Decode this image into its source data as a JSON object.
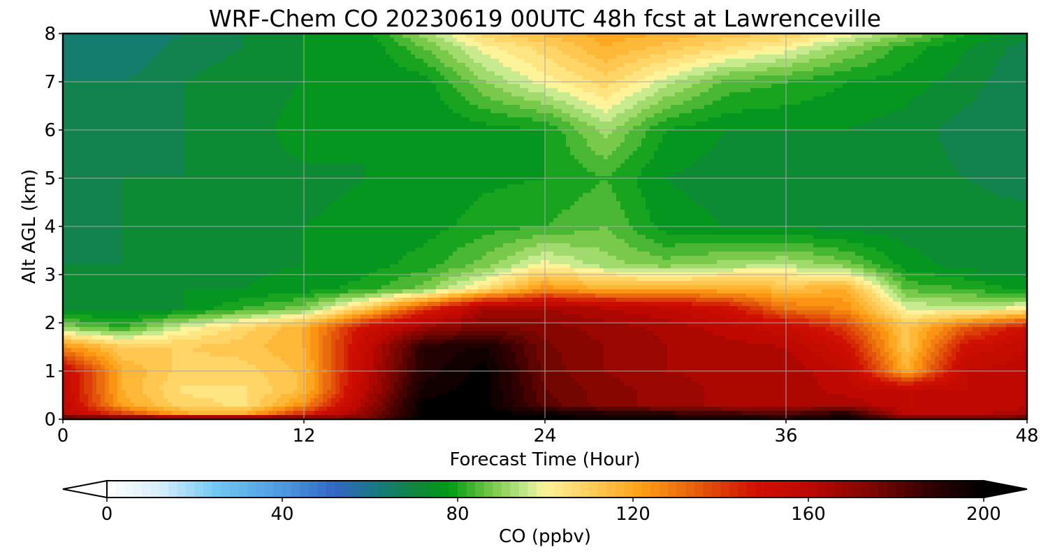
{
  "chart_data": {
    "type": "heatmap",
    "title": "WRF-Chem CO  20230619 00UTC 48h fcst at Lawrenceville",
    "xlabel": "Forecast Time (Hour)",
    "ylabel": "Alt AGL (km)",
    "xlim": [
      0,
      48
    ],
    "ylim": [
      0,
      8
    ],
    "xticks": [
      "0",
      "12",
      "24",
      "36",
      "48"
    ],
    "yticks": [
      "0",
      "1",
      "2",
      "3",
      "4",
      "5",
      "6",
      "7",
      "8"
    ],
    "grid": true,
    "colorbar": {
      "label": "CO  (ppbv)",
      "min": 0,
      "max": 200,
      "ticks": [
        "0",
        "40",
        "80",
        "120",
        "160",
        "200"
      ],
      "extend": "both",
      "stops": [
        {
          "v": 0,
          "c": "#ffffff"
        },
        {
          "v": 12,
          "c": "#d8eefb"
        },
        {
          "v": 25,
          "c": "#70c8f2"
        },
        {
          "v": 40,
          "c": "#4d9ae0"
        },
        {
          "v": 52,
          "c": "#3366c4"
        },
        {
          "v": 62,
          "c": "#167a7e"
        },
        {
          "v": 70,
          "c": "#11853f"
        },
        {
          "v": 78,
          "c": "#009b14"
        },
        {
          "v": 88,
          "c": "#79c94a"
        },
        {
          "v": 96,
          "c": "#c8eb90"
        },
        {
          "v": 100,
          "c": "#fff39a"
        },
        {
          "v": 110,
          "c": "#ffce5c"
        },
        {
          "v": 122,
          "c": "#ff9f14"
        },
        {
          "v": 133,
          "c": "#e8650d"
        },
        {
          "v": 148,
          "c": "#d01000"
        },
        {
          "v": 160,
          "c": "#be0800"
        },
        {
          "v": 175,
          "c": "#7a0600"
        },
        {
          "v": 188,
          "c": "#300000"
        },
        {
          "v": 200,
          "c": "#000000"
        }
      ]
    },
    "hours": [
      0,
      3,
      6,
      9,
      12,
      15,
      18,
      21,
      24,
      27,
      30,
      33,
      36,
      39,
      42,
      45,
      48
    ],
    "heights_km": [
      0,
      0.1,
      0.3,
      0.6,
      1.0,
      1.5,
      1.9,
      2.3,
      2.7,
      3.2,
      4.0,
      5.0,
      6.0,
      7.0,
      7.7,
      8.0
    ],
    "values": [
      [
        188,
        190,
        198,
        200,
        185,
        172,
        200,
        200,
        200,
        200,
        198,
        196,
        195,
        198,
        178,
        178,
        182
      ],
      [
        160,
        140,
        120,
        118,
        145,
        170,
        200,
        200,
        198,
        193,
        190,
        186,
        182,
        193,
        160,
        160,
        166
      ],
      [
        158,
        120,
        108,
        105,
        125,
        165,
        200,
        200,
        180,
        172,
        168,
        165,
        165,
        165,
        158,
        158,
        160
      ],
      [
        156,
        118,
        105,
        105,
        115,
        160,
        196,
        200,
        178,
        172,
        168,
        165,
        165,
        160,
        158,
        158,
        160
      ],
      [
        155,
        118,
        108,
        108,
        115,
        158,
        192,
        200,
        176,
        170,
        166,
        165,
        165,
        158,
        118,
        158,
        160
      ],
      [
        125,
        110,
        110,
        112,
        118,
        156,
        190,
        195,
        175,
        170,
        166,
        164,
        162,
        150,
        112,
        150,
        158
      ],
      [
        90,
        82,
        98,
        108,
        118,
        150,
        168,
        175,
        172,
        168,
        165,
        160,
        155,
        140,
        112,
        135,
        150
      ],
      [
        72,
        72,
        74,
        82,
        88,
        110,
        140,
        165,
        166,
        162,
        158,
        150,
        130,
        125,
        98,
        95,
        100
      ],
      [
        72,
        72,
        74,
        74,
        76,
        80,
        88,
        105,
        125,
        118,
        118,
        118,
        115,
        118,
        85,
        82,
        76
      ],
      [
        70,
        70,
        73,
        73,
        74,
        76,
        80,
        88,
        100,
        92,
        88,
        92,
        94,
        88,
        76,
        72,
        72
      ],
      [
        69,
        70,
        72,
        73,
        74,
        75,
        76,
        80,
        82,
        86,
        76,
        74,
        74,
        72,
        72,
        72,
        72
      ],
      [
        69,
        70,
        70,
        72,
        73,
        74,
        75,
        77,
        78,
        82,
        74,
        72,
        72,
        72,
        72,
        70,
        68
      ],
      [
        68,
        68,
        70,
        72,
        76,
        74,
        74,
        76,
        78,
        92,
        78,
        74,
        74,
        74,
        72,
        68,
        66
      ],
      [
        66,
        66,
        70,
        72,
        74,
        74,
        76,
        90,
        100,
        108,
        96,
        85,
        82,
        78,
        76,
        72,
        66
      ],
      [
        63,
        62,
        68,
        70,
        74,
        74,
        86,
        100,
        108,
        118,
        112,
        106,
        100,
        90,
        80,
        74,
        68
      ],
      [
        63,
        62,
        66,
        70,
        74,
        76,
        92,
        108,
        115,
        120,
        118,
        112,
        110,
        100,
        90,
        78,
        72
      ]
    ]
  }
}
